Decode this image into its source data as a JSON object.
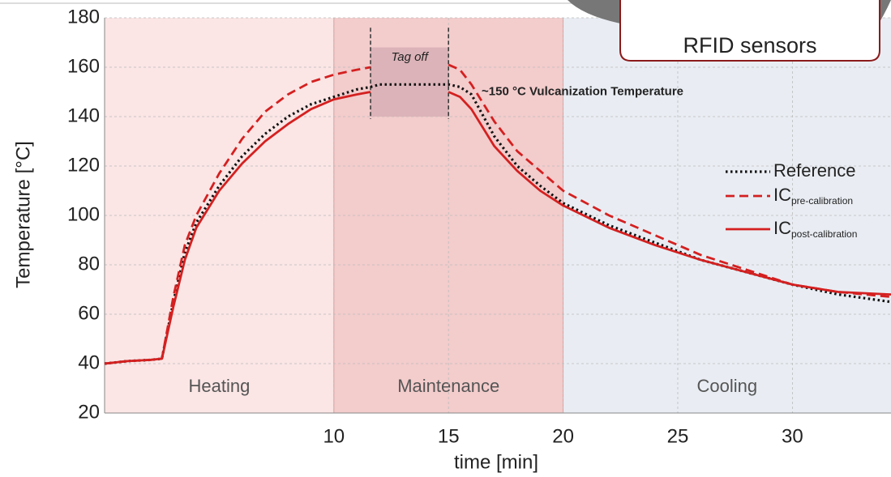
{
  "chart_data": {
    "type": "line",
    "ylabel": "Temperature [°C]",
    "xlabel": "time [min]",
    "x": [
      0,
      1,
      2,
      2.5,
      3,
      3.5,
      4,
      5,
      6,
      7,
      8,
      9,
      10,
      11,
      11.6,
      12,
      13,
      14,
      15,
      15.5,
      16,
      17,
      18,
      19,
      20,
      22,
      24,
      26,
      28,
      30,
      32,
      34.3
    ],
    "series": [
      {
        "name": "Reference",
        "color": "#111111",
        "style": "dotted",
        "values": [
          40,
          41,
          41.5,
          42,
          65,
          85,
          97,
          112,
          124,
          133,
          140,
          145,
          148,
          151,
          152,
          153,
          153,
          153,
          153,
          152,
          149,
          132,
          120,
          112,
          105,
          96,
          89,
          82,
          77,
          72,
          68,
          65
        ]
      },
      {
        "name": "IC",
        "subscript": "pre-calibration",
        "color": "#d42020",
        "style": "dashed",
        "values": [
          40,
          41,
          41.5,
          42,
          67,
          88,
          100,
          117,
          131,
          142,
          149,
          154,
          157,
          159,
          160,
          null,
          null,
          null,
          161,
          159,
          153,
          138,
          126,
          118,
          110,
          100,
          92,
          84,
          78,
          72,
          69,
          67
        ]
      },
      {
        "name": "IC",
        "subscript": "post-calibration",
        "color": "#d42020",
        "style": "solid",
        "values": [
          40,
          41,
          41.5,
          42,
          63,
          82,
          95,
          110,
          121,
          130,
          137,
          143,
          147,
          149,
          150,
          null,
          null,
          null,
          150,
          148,
          143,
          128,
          118,
          110,
          104,
          95,
          88,
          82,
          77,
          72,
          69,
          68
        ]
      }
    ],
    "xlim": [
      0,
      34.3
    ],
    "ylim": [
      20,
      180
    ],
    "xticks": [
      10,
      15,
      20,
      25,
      30
    ],
    "yticks": [
      20,
      40,
      60,
      80,
      100,
      120,
      140,
      160,
      180
    ],
    "grid": true,
    "regions": [
      {
        "label": "Heating",
        "start": 0,
        "end": 10,
        "color": "#fbe5e5"
      },
      {
        "label": "Maintenance",
        "start": 10,
        "end": 20,
        "color": "#f3cccc"
      },
      {
        "label": "Cooling",
        "start": 20,
        "end": 34.3,
        "color": "#e9edf3"
      }
    ],
    "tag_off": {
      "label": "Tag off",
      "start": 11.6,
      "end": 15,
      "color": "#dbb3b8"
    },
    "annotation": "~150 °C  Vulcanization Temperature",
    "callout": "RFID sensors"
  }
}
